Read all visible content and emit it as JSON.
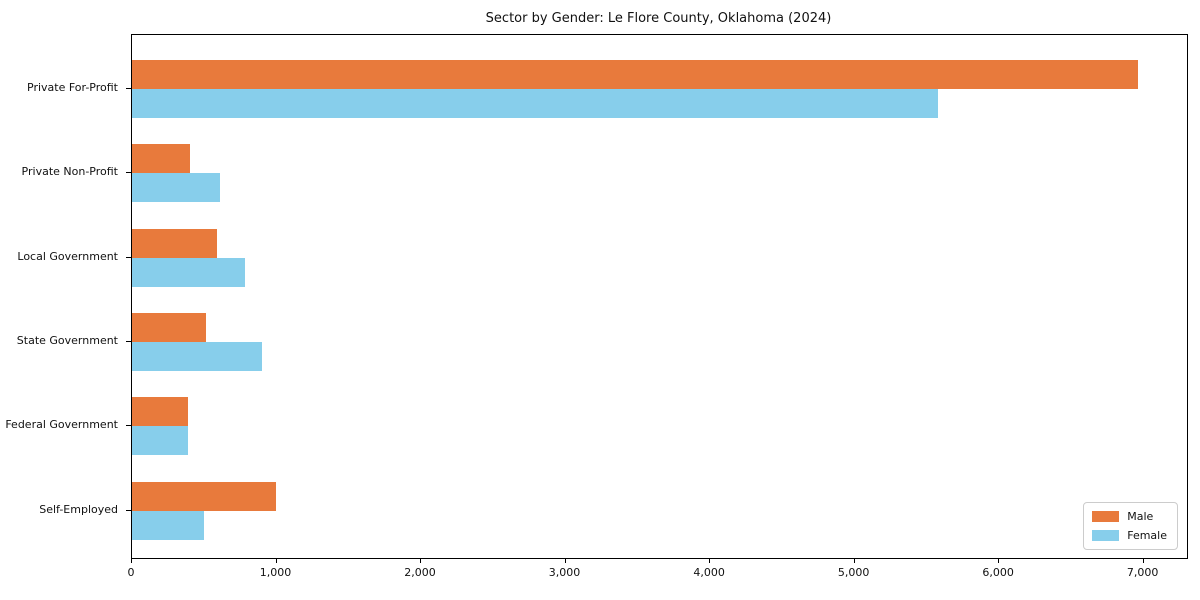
{
  "chart": {
    "title": "Sector by Gender: Le Flore County, Oklahoma (2024)"
  },
  "chart_data": {
    "type": "bar",
    "orientation": "horizontal",
    "title": "Sector by Gender: Le Flore County, Oklahoma (2024)",
    "xlabel": "",
    "ylabel": "",
    "categories": [
      "Private For-Profit",
      "Private Non-Profit",
      "Local Government",
      "State Government",
      "Federal Government",
      "Self-Employed"
    ],
    "series": [
      {
        "name": "Male",
        "color": "#e87a3c",
        "values": [
          6960,
          400,
          585,
          510,
          385,
          995
        ]
      },
      {
        "name": "Female",
        "color": "#87ceeb",
        "values": [
          5580,
          610,
          780,
          900,
          385,
          500
        ]
      }
    ],
    "xlim": [
      0,
      7300
    ],
    "xticks": [
      0,
      1000,
      2000,
      3000,
      4000,
      5000,
      6000,
      7000
    ],
    "xtick_labels": [
      "0",
      "1,000",
      "2,000",
      "3,000",
      "4,000",
      "5,000",
      "6,000",
      "7,000"
    ],
    "grid": false,
    "legend_position": "lower right"
  }
}
